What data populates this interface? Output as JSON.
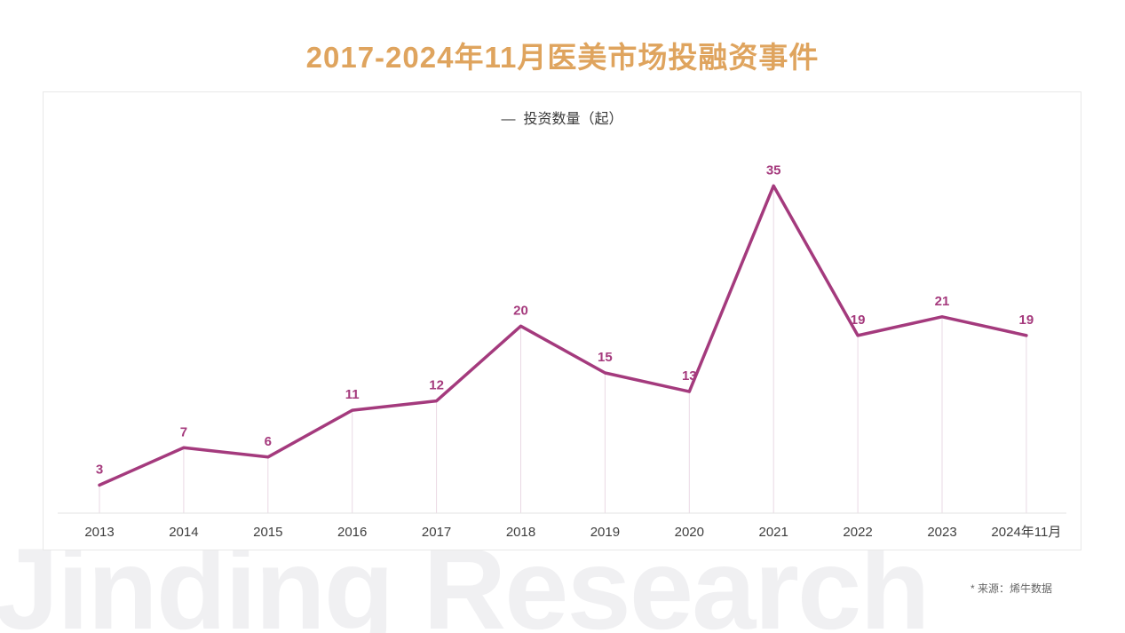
{
  "title": "2017-2024年11月医美市场投融资事件",
  "legend": {
    "dash": "—",
    "label": "投资数量（起）"
  },
  "source_note": "* 来源：烯牛数据",
  "watermark": "Jinding Research",
  "colors": {
    "title": "#DFA45E",
    "line": "#A43A7D",
    "value_label": "#A53A7D",
    "axis_label": "#3d3d3d",
    "axis_line": "#e3e3e3",
    "drop_line": "#ead9e4",
    "panel_border": "#e8e8e8",
    "source": "#666666",
    "watermark": "#f0f0f2"
  },
  "chart_data": {
    "type": "line",
    "title": "2017-2024年11月医美市场投融资事件",
    "categories": [
      "2013",
      "2014",
      "2015",
      "2016",
      "2017",
      "2018",
      "2019",
      "2020",
      "2021",
      "2022",
      "2023",
      "2024年11月"
    ],
    "series": [
      {
        "name": "投资数量（起）",
        "values": [
          3,
          7,
          6,
          11,
          12,
          20,
          15,
          13,
          35,
          19,
          21,
          19
        ]
      }
    ],
    "xlabel": "",
    "ylabel": "投资数量（起）",
    "ylim": [
      0,
      45
    ],
    "grid": false,
    "drop_lines": true,
    "data_labels": true,
    "legend_position": "top-center"
  }
}
